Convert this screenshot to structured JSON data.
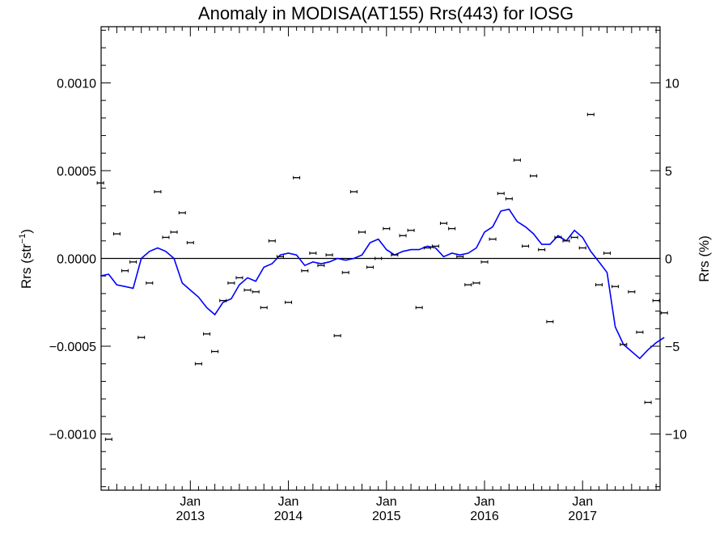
{
  "chart_data": {
    "type": "line",
    "title": "Anomaly in MODISA(AT155) Rrs(443) for IOSG",
    "ylabel_left": "Rrs (str",
    "ylabel_left_sup": "−1",
    "ylabel_left_close": ")",
    "ylabel_right": "Rrs (%)",
    "xlim": [
      2012.09,
      2017.79
    ],
    "ylim": [
      -0.00132,
      0.00132
    ],
    "ylim_right": [
      -13.2,
      13.2
    ],
    "x_ticks": [
      {
        "x": 2013.0,
        "month": "Jan",
        "year": "2013"
      },
      {
        "x": 2014.0,
        "month": "Jan",
        "year": "2014"
      },
      {
        "x": 2015.0,
        "month": "Jan",
        "year": "2015"
      },
      {
        "x": 2016.0,
        "month": "Jan",
        "year": "2016"
      },
      {
        "x": 2017.0,
        "month": "Jan",
        "year": "2017"
      }
    ],
    "y_ticks_left": [
      {
        "v": 0.001,
        "label": "0.0010"
      },
      {
        "v": 0.0005,
        "label": "0.0005"
      },
      {
        "v": 0.0,
        "label": "0.0000"
      },
      {
        "v": -0.0005,
        "label": "−0.0005"
      },
      {
        "v": -0.001,
        "label": "−0.0010"
      }
    ],
    "y_ticks_right": [
      {
        "v": 10,
        "label": "10"
      },
      {
        "v": 5,
        "label": "5"
      },
      {
        "v": 0,
        "label": "0"
      },
      {
        "v": -5,
        "label": "−5"
      },
      {
        "v": -10,
        "label": "−10"
      }
    ],
    "line_color": "#0000ff",
    "point_color": "#000000",
    "series": [
      {
        "type": "line",
        "x": [
          2012.083,
          2012.167,
          2012.25,
          2012.333,
          2012.417,
          2012.5,
          2012.583,
          2012.667,
          2012.75,
          2012.833,
          2012.917,
          2013.0,
          2013.083,
          2013.167,
          2013.25,
          2013.333,
          2013.417,
          2013.5,
          2013.583,
          2013.667,
          2013.75,
          2013.833,
          2013.917,
          2014.0,
          2014.083,
          2014.167,
          2014.25,
          2014.333,
          2014.417,
          2014.5,
          2014.583,
          2014.667,
          2014.75,
          2014.833,
          2014.917,
          2015.0,
          2015.083,
          2015.167,
          2015.25,
          2015.333,
          2015.417,
          2015.5,
          2015.583,
          2015.667,
          2015.75,
          2015.833,
          2015.917,
          2016.0,
          2016.083,
          2016.167,
          2016.25,
          2016.333,
          2016.417,
          2016.5,
          2016.583,
          2016.667,
          2016.75,
          2016.833,
          2016.917,
          2017.0,
          2017.083,
          2017.167,
          2017.25,
          2017.333,
          2017.417,
          2017.5,
          2017.583,
          2017.667,
          2017.75,
          2017.833
        ],
        "y": [
          -0.0001,
          -9e-05,
          -0.00015,
          -0.00016,
          -0.00017,
          0.0,
          4e-05,
          6e-05,
          4e-05,
          0.0,
          -0.00014,
          -0.00018,
          -0.00022,
          -0.00028,
          -0.00032,
          -0.00025,
          -0.00023,
          -0.00015,
          -0.00011,
          -0.00013,
          -5e-05,
          -3e-05,
          2e-05,
          3e-05,
          2e-05,
          -4e-05,
          -2e-05,
          -3e-05,
          -2e-05,
          0.0,
          -1e-05,
          0.0,
          2e-05,
          9e-05,
          0.00011,
          5e-05,
          2e-05,
          4e-05,
          5e-05,
          5e-05,
          7e-05,
          6e-05,
          1e-05,
          3e-05,
          2e-05,
          3e-05,
          6e-05,
          0.00015,
          0.00018,
          0.00027,
          0.00028,
          0.00021,
          0.00018,
          0.00014,
          8e-05,
          8e-05,
          0.00013,
          0.0001,
          0.00016,
          0.00012,
          4e-05,
          -2e-05,
          -8e-05,
          -0.00039,
          -0.00049,
          -0.00053,
          -0.00057,
          -0.00052,
          -0.00048,
          -0.00045
        ]
      },
      {
        "type": "scatter",
        "x": [
          2012.083,
          2012.167,
          2012.25,
          2012.333,
          2012.417,
          2012.5,
          2012.583,
          2012.667,
          2012.75,
          2012.833,
          2012.917,
          2013.0,
          2013.083,
          2013.167,
          2013.25,
          2013.333,
          2013.417,
          2013.5,
          2013.583,
          2013.667,
          2013.75,
          2013.833,
          2013.917,
          2014.0,
          2014.083,
          2014.167,
          2014.25,
          2014.333,
          2014.417,
          2014.5,
          2014.583,
          2014.667,
          2014.75,
          2014.833,
          2014.917,
          2015.0,
          2015.083,
          2015.167,
          2015.25,
          2015.333,
          2015.417,
          2015.5,
          2015.583,
          2015.667,
          2015.75,
          2015.833,
          2015.917,
          2016.0,
          2016.083,
          2016.167,
          2016.25,
          2016.333,
          2016.417,
          2016.5,
          2016.583,
          2016.667,
          2016.75,
          2016.833,
          2016.917,
          2017.0,
          2017.083,
          2017.167,
          2017.25,
          2017.333,
          2017.417,
          2017.5,
          2017.583,
          2017.667,
          2017.75,
          2017.833
        ],
        "y": [
          0.00043,
          -0.00103,
          0.00014,
          -7e-05,
          -2e-05,
          -0.00045,
          -0.00014,
          0.00038,
          0.00012,
          0.00015,
          0.00026,
          9e-05,
          -0.0006,
          -0.00043,
          -0.00053,
          -0.00024,
          -0.00014,
          -0.00011,
          -0.00018,
          -0.00019,
          -0.00028,
          0.0001,
          1e-05,
          -0.00025,
          0.00046,
          -7e-05,
          3e-05,
          -4e-05,
          2e-05,
          -0.00044,
          -8e-05,
          0.00038,
          0.00015,
          -5e-05,
          0.0,
          0.00017,
          2e-05,
          0.00013,
          0.00016,
          -0.00028,
          6e-05,
          7e-05,
          0.0002,
          0.00017,
          1e-05,
          -0.00015,
          -0.00014,
          -2e-05,
          0.00011,
          0.00037,
          0.00034,
          0.00056,
          7e-05,
          0.00047,
          5e-05,
          -0.00036,
          0.00012,
          0.0001,
          0.00012,
          6e-05,
          0.00082,
          -0.00015,
          3e-05,
          -0.00016,
          -0.00049,
          -0.00019,
          -0.00042,
          -0.00082,
          -0.00024,
          -0.00031
        ]
      }
    ]
  }
}
